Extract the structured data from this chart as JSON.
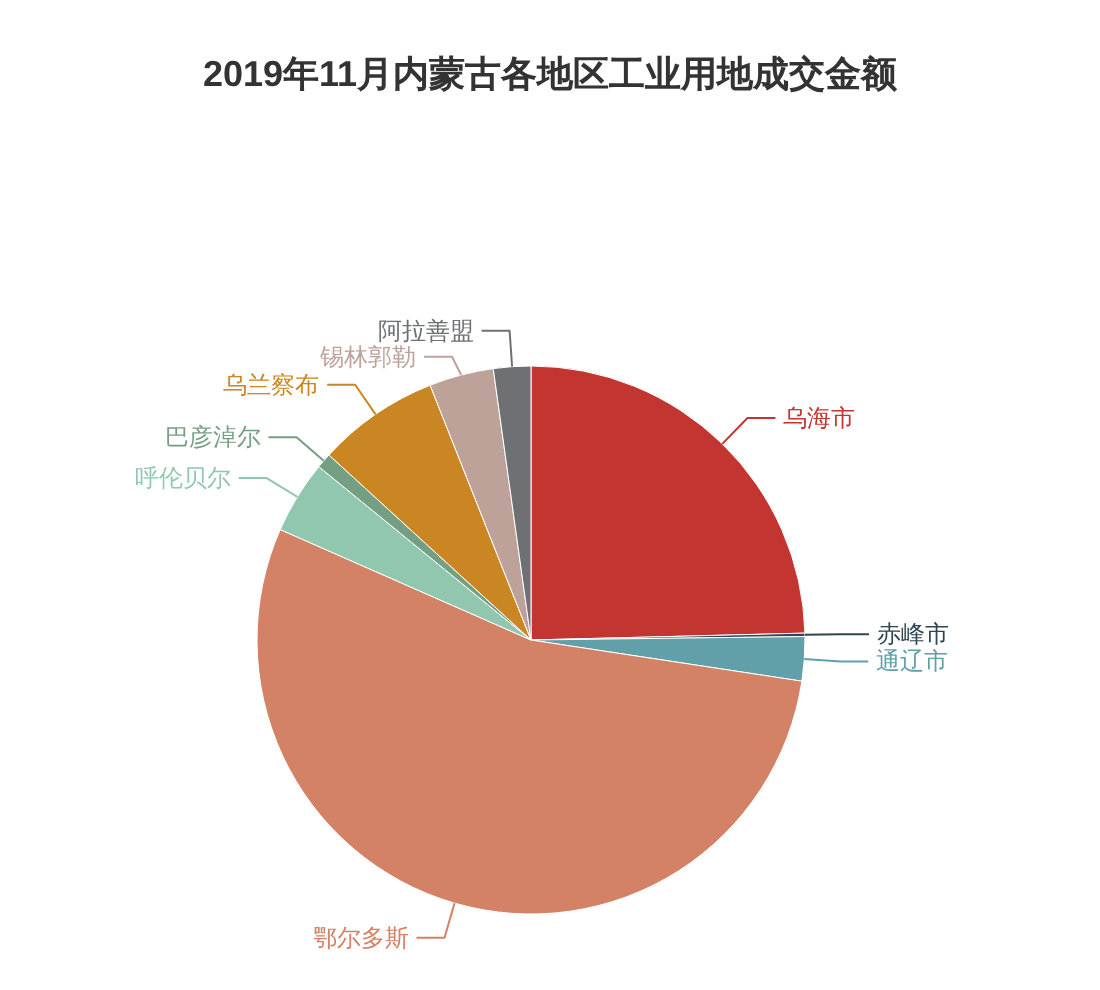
{
  "chart_data": {
    "type": "pie",
    "title": "2019年11月内蒙古各地区工业用地成交金额",
    "categories": [
      "乌海市",
      "赤峰市",
      "通辽市",
      "鄂尔多斯",
      "呼伦贝尔",
      "巴彦淖尔",
      "乌兰察布",
      "锡林郭勒",
      "阿拉善盟"
    ],
    "values": [
      24.6,
      0.2,
      2.6,
      54.2,
      4.3,
      0.9,
      7.2,
      3.8,
      2.2
    ],
    "colors": [
      "#c23531",
      "#2f4554",
      "#61a0a8",
      "#d48265",
      "#91c7ae",
      "#749f83",
      "#ca8622",
      "#bda29a",
      "#6e7074"
    ]
  }
}
